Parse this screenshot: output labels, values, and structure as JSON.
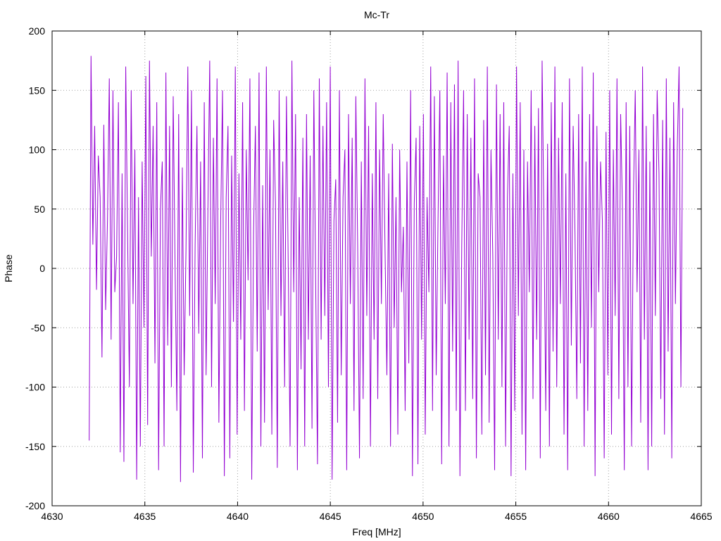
{
  "chart_data": {
    "type": "line",
    "title": "Mc-Tr",
    "xlabel": "Freq [MHz]",
    "ylabel": "Phase",
    "xlim": [
      4630,
      4665
    ],
    "ylim": [
      -200,
      200
    ],
    "xticks": [
      4630,
      4635,
      4640,
      4645,
      4650,
      4655,
      4660,
      4665
    ],
    "yticks": [
      -200,
      -150,
      -100,
      -50,
      0,
      50,
      100,
      150,
      200
    ],
    "xtick_labels": [
      "4630",
      "4635",
      "4640",
      "4645",
      "4650",
      "4655",
      "4660",
      "4665"
    ],
    "ytick_labels": [
      "-200",
      "-150",
      "-100",
      "-50",
      "0",
      "50",
      "100",
      "150",
      "200"
    ],
    "grid": true,
    "legend": "none",
    "colors": {
      "series": "#9400d3",
      "grid": "#a0a0a0",
      "axis": "#000000"
    },
    "series": [
      {
        "x_start": 4632.0,
        "x_end": 4664.0,
        "y": [
          -145,
          179,
          20,
          120,
          -18,
          95,
          60,
          -75,
          121,
          -35,
          40,
          160,
          -60,
          150,
          -20,
          10,
          140,
          -155,
          80,
          -163,
          170,
          32,
          -100,
          150,
          -30,
          100,
          -178,
          60,
          -150,
          90,
          -50,
          162,
          -132,
          175,
          10,
          120,
          -80,
          140,
          -170,
          50,
          90,
          -150,
          165,
          -65,
          120,
          -100,
          145,
          5,
          -120,
          130,
          -180,
          85,
          -90,
          15,
          170,
          -40,
          150,
          -172,
          20,
          120,
          -55,
          90,
          -160,
          140,
          -90,
          50,
          175,
          -100,
          110,
          -30,
          160,
          -130,
          40,
          150,
          -175,
          60,
          120,
          -160,
          95,
          -45,
          170,
          -140,
          80,
          -60,
          140,
          -120,
          100,
          -10,
          160,
          -178,
          30,
          120,
          -70,
          165,
          -150,
          70,
          -130,
          170,
          -35,
          100,
          -140,
          125,
          55,
          -168,
          150,
          -40,
          90,
          -100,
          145,
          0,
          -150,
          175,
          -20,
          130,
          -170,
          60,
          -85,
          110,
          -150,
          130,
          -60,
          95,
          -135,
          150,
          -10,
          -165,
          160,
          -60,
          120,
          -40,
          140,
          -100,
          170,
          -178,
          40,
          75,
          -130,
          150,
          -90,
          60,
          100,
          -170,
          130,
          -30,
          110,
          -120,
          145,
          20,
          -160,
          90,
          -110,
          160,
          -40,
          120,
          -150,
          80,
          -60,
          140,
          -110,
          100,
          -30,
          130,
          15,
          -90,
          80,
          -150,
          105,
          -50,
          60,
          -140,
          100,
          -20,
          35,
          -120,
          90,
          -80,
          150,
          -175,
          55,
          110,
          -165,
          120,
          -60,
          130,
          -140,
          60,
          -20,
          170,
          -120,
          145,
          -90,
          40,
          150,
          -165,
          95,
          -30,
          165,
          -150,
          140,
          -70,
          155,
          -120,
          175,
          -175,
          20,
          150,
          -120,
          130,
          -60,
          110,
          -110,
          160,
          -160,
          80,
          60,
          -140,
          125,
          -90,
          170,
          -130,
          100,
          10,
          -170,
          155,
          -60,
          130,
          -100,
          140,
          -150,
          60,
          120,
          -175,
          80,
          -120,
          170,
          -40,
          140,
          -140,
          100,
          -170,
          90,
          -20,
          150,
          -110,
          120,
          -60,
          135,
          -160,
          175,
          40,
          -120,
          105,
          -150,
          140,
          -70,
          170,
          -100,
          110,
          -30,
          140,
          -140,
          80,
          -170,
          160,
          -65,
          120,
          30,
          -110,
          130,
          -80,
          170,
          -150,
          90,
          -120,
          130,
          -50,
          165,
          -175,
          120,
          -20,
          90,
          40,
          -160,
          115,
          -90,
          150,
          -140,
          100,
          -40,
          160,
          -110,
          130,
          50,
          -170,
          140,
          -100,
          120,
          -150,
          60,
          150,
          -20,
          100,
          -130,
          170,
          -60,
          120,
          -170,
          90,
          -150,
          130,
          -40,
          150,
          80,
          -110,
          125,
          -140,
          160,
          -70,
          110,
          -160,
          140,
          -30,
          100,
          170,
          -100,
          135
        ]
      }
    ]
  }
}
